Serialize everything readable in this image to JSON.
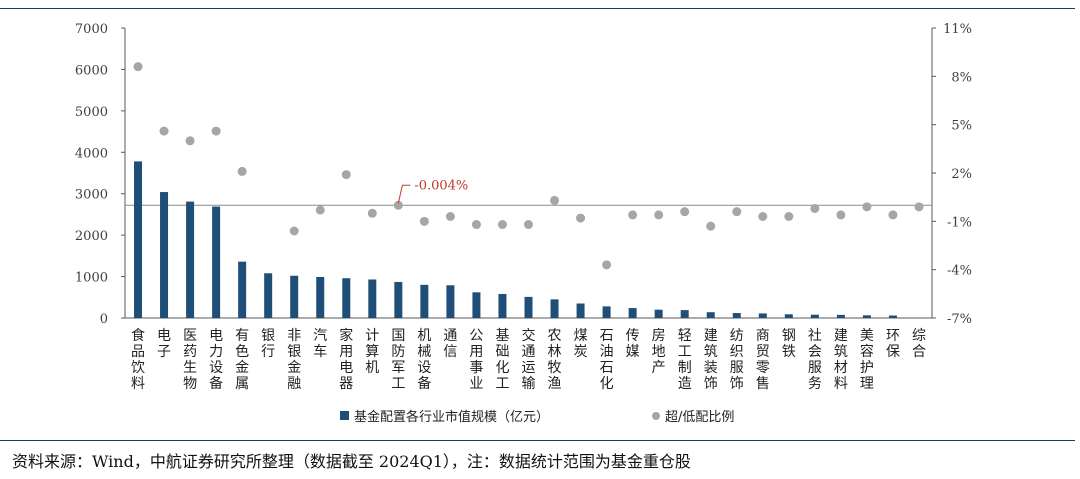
{
  "chart_data": {
    "type": "bar",
    "categories": [
      "食品饮料",
      "电子",
      "医药生物",
      "电力设备",
      "有色金属",
      "银行",
      "非银金融",
      "汽车",
      "家用电器",
      "计算机",
      "国防军工",
      "机械设备",
      "通信",
      "公用事业",
      "基础化工",
      "交通运输",
      "农林牧渔",
      "煤炭",
      "石油石化",
      "传媒",
      "房地产",
      "轻工制造",
      "建筑装饰",
      "纺织服饰",
      "商贸零售",
      "钢铁",
      "社会服务",
      "建筑材料",
      "美容护理",
      "环保",
      "综合"
    ],
    "series": [
      {
        "name": "基金配置各行业市值规模（亿元）",
        "type": "bar",
        "axis": "left",
        "color": "#1f4e79",
        "values": [
          3780,
          3040,
          2810,
          2690,
          1360,
          1080,
          1020,
          990,
          960,
          930,
          870,
          800,
          790,
          620,
          580,
          510,
          450,
          350,
          280,
          240,
          200,
          190,
          140,
          120,
          110,
          90,
          80,
          75,
          65,
          60,
          0
        ]
      },
      {
        "name": "超/低配比例",
        "type": "scatter",
        "axis": "right",
        "color": "#a6a6a6",
        "values": [
          8.6,
          4.6,
          4.0,
          4.6,
          2.1,
          null,
          -1.6,
          -0.3,
          1.9,
          -0.5,
          -0.004,
          -1.0,
          -0.7,
          -1.2,
          -1.2,
          -1.2,
          0.3,
          -0.8,
          -3.7,
          -0.6,
          -0.6,
          -0.4,
          -1.3,
          -0.4,
          -0.7,
          -0.7,
          -0.2,
          -0.6,
          -0.1,
          -0.6,
          -0.1
        ]
      }
    ],
    "left_axis": {
      "min": 0,
      "max": 7000,
      "ticks": [
        "0",
        "1000",
        "2000",
        "3000",
        "4000",
        "5000",
        "6000",
        "7000"
      ]
    },
    "right_axis": {
      "min": -7,
      "max": 11,
      "ticks": [
        "-7%",
        "-4%",
        "-1%",
        "2%",
        "5%",
        "8%",
        "11%"
      ]
    },
    "reference_line_value": -0.004,
    "annotation": {
      "text": "-0.004%",
      "category": "国防军工",
      "color": "#c0392b"
    },
    "legend_position": "bottom-center",
    "grid": false
  },
  "source_note": "资料来源：Wind，中航证券研究所整理（数据截至 2024Q1），注：数据统计范围为基金重仓股"
}
